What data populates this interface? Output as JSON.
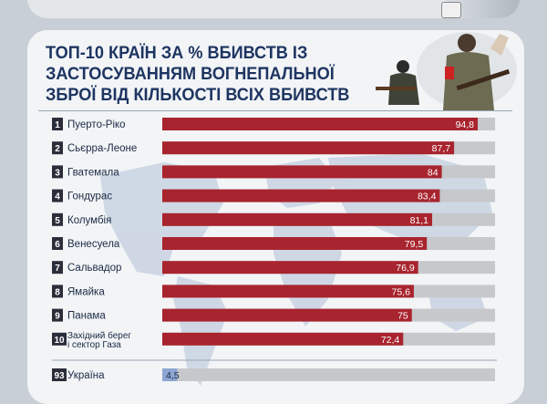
{
  "header": {
    "title_lines": [
      "ТОП-10 КРАЇН ЗА % ВБИВСТВ ІЗ",
      "ЗАСТОСУВАННЯМ ВОГНЕПАЛЬНОЇ",
      "ЗБРОЇ ВІД КІЛЬКОСТІ ВСІХ ВБИВСТВ"
    ]
  },
  "colors": {
    "title": "#1e3561",
    "bar_red": "#a8242e",
    "bar_blue": "#8ea6d4",
    "track": "#c6c8cb",
    "rank_badge": "#2a2e3a"
  },
  "chart_data": {
    "type": "bar",
    "orientation": "horizontal",
    "title": "ТОП-10 КРАЇН ЗА % ВБИВСТВ ІЗ ЗАСТОСУВАННЯМ ВОГНЕПАЛЬНОЇ ЗБРОЇ ВІД КІЛЬКОСТІ ВСІХ ВБИВСТВ",
    "xlim": [
      0,
      100
    ],
    "grid": false,
    "rows": [
      {
        "rank": "1",
        "country": [
          "Пуерто-Ріко"
        ],
        "value": 94.8,
        "label": "94,8"
      },
      {
        "rank": "2",
        "country": [
          "Сьєрра-Леоне"
        ],
        "value": 87.7,
        "label": "87,7"
      },
      {
        "rank": "3",
        "country": [
          "Гватемала"
        ],
        "value": 84,
        "label": "84"
      },
      {
        "rank": "4",
        "country": [
          "Гондурас"
        ],
        "value": 83.4,
        "label": "83,4"
      },
      {
        "rank": "5",
        "country": [
          "Колумбія"
        ],
        "value": 81.1,
        "label": "81,1"
      },
      {
        "rank": "6",
        "country": [
          "Венесуела"
        ],
        "value": 79.5,
        "label": "79,5"
      },
      {
        "rank": "7",
        "country": [
          "Сальвадор"
        ],
        "value": 76.9,
        "label": "76,9"
      },
      {
        "rank": "8",
        "country": [
          "Ямайка"
        ],
        "value": 75.6,
        "label": "75,6"
      },
      {
        "rank": "9",
        "country": [
          "Панама"
        ],
        "value": 75,
        "label": "75"
      },
      {
        "rank": "10",
        "country": [
          "Західний берег",
          "і сектор Газа"
        ],
        "value": 72.4,
        "label": "72,4"
      }
    ],
    "highlight": {
      "rank": "93",
      "country": [
        "Україна"
      ],
      "value": 4.5,
      "label": "4,5"
    }
  }
}
